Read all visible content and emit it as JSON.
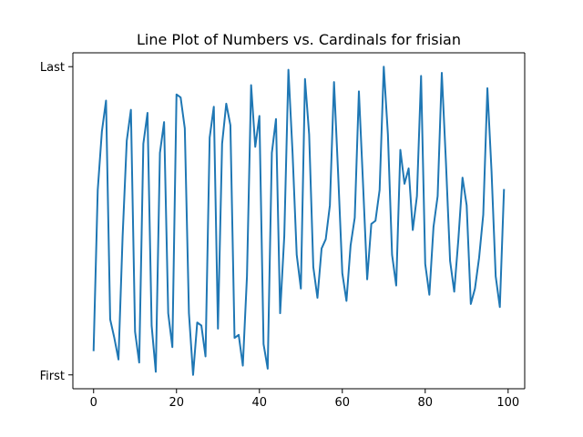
{
  "chart_data": {
    "type": "line",
    "title": "Line Plot of Numbers vs. Cardinals for frisian",
    "xlabel": "",
    "ylabel": "",
    "xlim": [
      -5,
      104
    ],
    "ylim": [
      -0.045,
      1.045
    ],
    "x_ticks": [
      0,
      20,
      40,
      60,
      80,
      100
    ],
    "x_tick_labels": [
      "0",
      "20",
      "40",
      "60",
      "80",
      "100"
    ],
    "y_ticks": [
      0,
      1
    ],
    "y_tick_labels": [
      "First",
      "Last"
    ],
    "grid": false,
    "series": [
      {
        "color": "#1f77b4",
        "x": [
          0,
          1,
          2,
          3,
          4,
          5,
          6,
          7,
          8,
          9,
          10,
          11,
          12,
          13,
          14,
          15,
          16,
          17,
          18,
          19,
          20,
          21,
          22,
          23,
          24,
          25,
          26,
          27,
          28,
          29,
          30,
          31,
          32,
          33,
          34,
          35,
          36,
          37,
          38,
          39,
          40,
          41,
          42,
          43,
          44,
          45,
          46,
          47,
          48,
          49,
          50,
          51,
          52,
          53,
          54,
          55,
          56,
          57,
          58,
          59,
          60,
          61,
          62,
          63,
          64,
          65,
          66,
          67,
          68,
          69,
          70,
          71,
          72,
          73,
          74,
          75,
          76,
          77,
          78,
          79,
          80,
          81,
          82,
          83,
          84,
          85,
          86,
          87,
          88,
          89,
          90,
          91,
          92,
          93,
          94,
          95,
          96,
          97,
          98,
          99
        ],
        "y": [
          0.08,
          0.6,
          0.79,
          0.89,
          0.18,
          0.12,
          0.05,
          0.45,
          0.76,
          0.86,
          0.14,
          0.04,
          0.75,
          0.85,
          0.16,
          0.01,
          0.72,
          0.82,
          0.2,
          0.09,
          0.91,
          0.9,
          0.8,
          0.2,
          0.0,
          0.17,
          0.16,
          0.06,
          0.77,
          0.87,
          0.15,
          0.75,
          0.88,
          0.81,
          0.12,
          0.13,
          0.03,
          0.32,
          0.94,
          0.74,
          0.84,
          0.1,
          0.02,
          0.72,
          0.83,
          0.2,
          0.45,
          0.99,
          0.72,
          0.39,
          0.28,
          0.96,
          0.78,
          0.35,
          0.25,
          0.41,
          0.44,
          0.55,
          0.95,
          0.65,
          0.33,
          0.24,
          0.42,
          0.51,
          0.92,
          0.62,
          0.31,
          0.49,
          0.5,
          0.6,
          1.0,
          0.78,
          0.39,
          0.29,
          0.73,
          0.62,
          0.67,
          0.47,
          0.58,
          0.97,
          0.36,
          0.26,
          0.48,
          0.58,
          0.98,
          0.69,
          0.37,
          0.27,
          0.44,
          0.64,
          0.55,
          0.23,
          0.28,
          0.38,
          0.52,
          0.93,
          0.66,
          0.32,
          0.22,
          0.6
        ]
      }
    ]
  }
}
